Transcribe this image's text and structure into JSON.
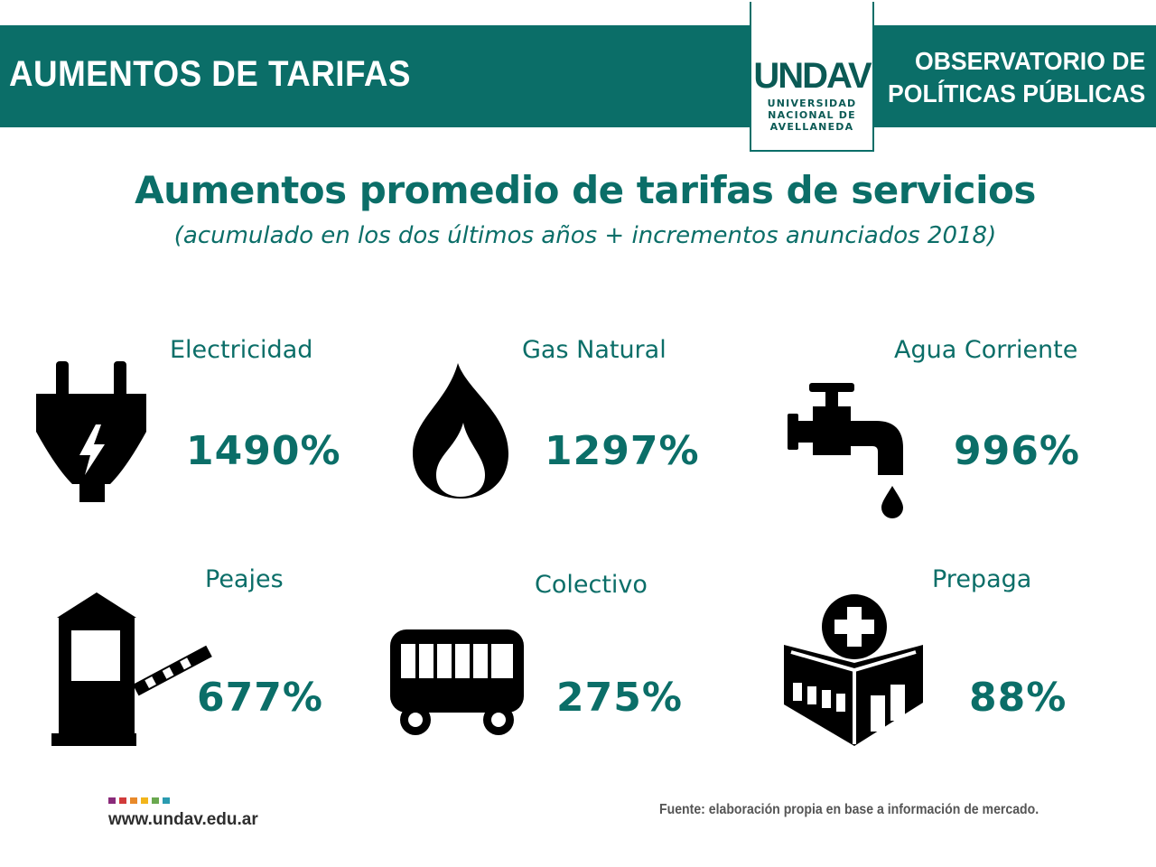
{
  "header": {
    "title": "AUMENTOS DE TARIFAS",
    "logo": {
      "mark": "UNDAV",
      "lines": [
        "UNIVERSIDAD",
        "NACIONAL DE",
        "AVELLANEDA"
      ]
    },
    "right_lines": [
      "OBSERVATORIO DE",
      "POLÍTICAS PÚBLICAS"
    ]
  },
  "main": {
    "title": "Aumentos promedio de tarifas de servicios",
    "subtitle": "(acumulado en los dos últimos años + incrementos anunciados 2018)"
  },
  "services": [
    {
      "label": "Electricidad",
      "value": "1490%",
      "icon": "plug-icon"
    },
    {
      "label": "Gas Natural",
      "value": "1297%",
      "icon": "flame-icon"
    },
    {
      "label": "Agua Corriente",
      "value": "996%",
      "icon": "faucet-icon"
    },
    {
      "label": "Peajes",
      "value": "677%",
      "icon": "toll-booth-icon"
    },
    {
      "label": "Colectivo",
      "value": "275%",
      "icon": "bus-icon"
    },
    {
      "label": "Prepaga",
      "value": "88%",
      "icon": "hospital-icon"
    }
  ],
  "footer": {
    "website": "www.undav.edu.ar",
    "source": "Fuente: elaboración propia en base a información de mercado.",
    "dot_colors": [
      "#8a2b7a",
      "#d13b3b",
      "#e8892a",
      "#f2b51b",
      "#6aa84f",
      "#2a9bb0"
    ]
  },
  "colors": {
    "accent": "#0b6e68",
    "icon": "#000000",
    "background": "#ffffff"
  }
}
